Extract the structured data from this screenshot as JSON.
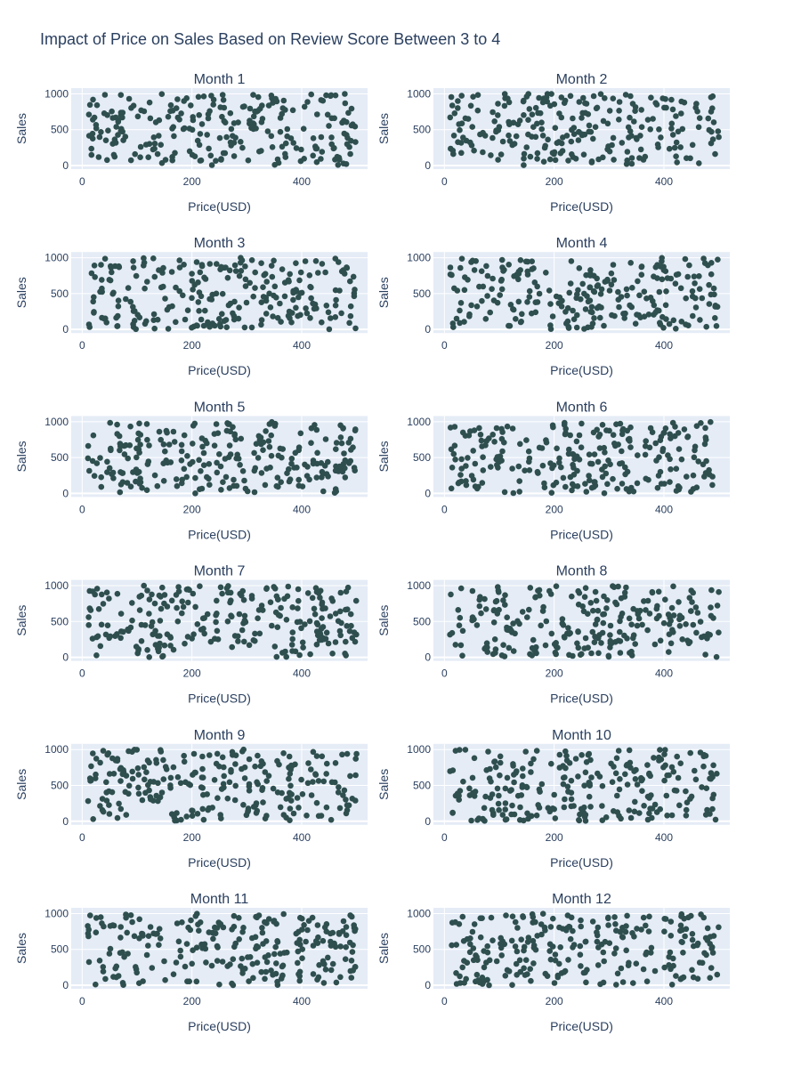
{
  "chart_title": "Impact of Price on Sales Based on Review Score Between 3 to 4",
  "chart_data": {
    "type": "scatter",
    "title": "Impact of Price on Sales Based on Review Score Between 3 to 4",
    "layout": "6 rows x 2 columns of subplots",
    "marker_color": "#2f4f4f",
    "plot_background": "#e5ecf6",
    "grid": true,
    "xlabel": "Price(USD)",
    "ylabel": "Sales",
    "xlim": [
      -20,
      520
    ],
    "ylim": [
      -50,
      1080
    ],
    "x_ticks": [
      0,
      200,
      400
    ],
    "y_ticks": [
      0,
      500,
      1000
    ],
    "points_per_panel": 250,
    "panels": [
      {
        "title": "Month 1"
      },
      {
        "title": "Month 2"
      },
      {
        "title": "Month 3"
      },
      {
        "title": "Month 4"
      },
      {
        "title": "Month 5"
      },
      {
        "title": "Month 6"
      },
      {
        "title": "Month 7"
      },
      {
        "title": "Month 8"
      },
      {
        "title": "Month 9"
      },
      {
        "title": "Month 10"
      },
      {
        "title": "Month 11"
      },
      {
        "title": "Month 12"
      }
    ]
  }
}
